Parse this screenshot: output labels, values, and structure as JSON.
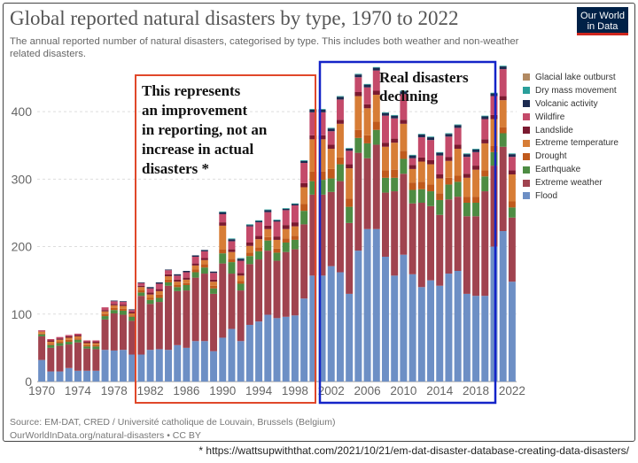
{
  "header": {
    "title": "Global reported natural disasters by type, 1970 to 2022",
    "subtitle": "The annual reported number of natural disasters, categorised by type. This includes both weather and non-weather related disasters.",
    "logo": "Our World in Data"
  },
  "annotations": {
    "left_box_text": "This represents\nan improvement\nin reporting, not an\nincrease in actual\ndisasters *",
    "right_box_text": "Real disasters\ndeclining",
    "left_box_color": "#e0482a",
    "right_box_color": "#1424c8"
  },
  "footer": {
    "source_line1": "Source: EM-DAT, CRED / Université catholique de Louvain, Brussels (Belgium)",
    "source_line2": "OurWorldInData.org/natural-disasters • CC BY",
    "footnote": "*  https://wattsupwiththat.com/2021/10/21/em-dat-disaster-database-creating-data-disasters/"
  },
  "chart_data": {
    "type": "bar",
    "stacked": true,
    "title": "Global reported natural disasters by type, 1970 to 2022",
    "ylim": [
      0,
      450
    ],
    "yticks": [
      0,
      100,
      200,
      300,
      400
    ],
    "xticks": [
      1970,
      1974,
      1978,
      1982,
      1986,
      1990,
      1994,
      1998,
      2002,
      2006,
      2010,
      2014,
      2018,
      2022
    ],
    "grid": true,
    "legend_position": "right",
    "categories": [
      1970,
      1971,
      1972,
      1973,
      1974,
      1975,
      1976,
      1977,
      1978,
      1979,
      1980,
      1981,
      1982,
      1983,
      1984,
      1985,
      1986,
      1987,
      1988,
      1989,
      1990,
      1991,
      1992,
      1993,
      1994,
      1995,
      1996,
      1997,
      1998,
      1999,
      2000,
      2001,
      2002,
      2003,
      2004,
      2005,
      2006,
      2007,
      2008,
      2009,
      2010,
      2011,
      2012,
      2013,
      2014,
      2015,
      2016,
      2017,
      2018,
      2019,
      2020,
      2021,
      2022
    ],
    "series": [
      {
        "name": "Flood",
        "color": "#6d8fc5",
        "values": [
          32,
          15,
          15,
          20,
          16,
          16,
          16,
          47,
          46,
          47,
          40,
          40,
          47,
          48,
          47,
          54,
          50,
          60,
          60,
          45,
          65,
          78,
          60,
          84,
          89,
          99,
          94,
          96,
          98,
          123,
          157,
          157,
          171,
          162,
          130,
          194,
          226,
          226,
          185,
          157,
          188,
          159,
          140,
          150,
          142,
          160,
          164,
          130,
          127,
          127,
          200,
          223,
          148
        ]
      },
      {
        "name": "Extreme weather",
        "color": "#a0434f",
        "values": [
          35,
          35,
          38,
          35,
          42,
          33,
          32,
          45,
          55,
          52,
          50,
          87,
          68,
          70,
          95,
          80,
          85,
          94,
          100,
          85,
          110,
          82,
          75,
          90,
          92,
          95,
          85,
          96,
          98,
          110,
          120,
          120,
          110,
          135,
          105,
          145,
          105,
          125,
          95,
          125,
          120,
          105,
          125,
          110,
          105,
          110,
          110,
          115,
          118,
          155,
          120,
          125,
          95
        ]
      },
      {
        "name": "Earthquake",
        "color": "#4e8c43",
        "values": [
          3,
          4,
          4,
          4,
          4,
          3,
          4,
          5,
          5,
          6,
          6,
          5,
          6,
          6,
          5,
          6,
          8,
          8,
          9,
          8,
          15,
          17,
          10,
          12,
          12,
          15,
          12,
          14,
          14,
          20,
          20,
          22,
          20,
          25,
          24,
          22,
          22,
          22,
          22,
          20,
          22,
          20,
          20,
          22,
          22,
          22,
          22,
          20,
          20,
          22,
          20,
          20,
          15
        ]
      },
      {
        "name": "Drought",
        "color": "#c05a1c",
        "values": [
          1,
          2,
          2,
          3,
          2,
          2,
          2,
          3,
          3,
          3,
          2,
          4,
          3,
          5,
          4,
          3,
          3,
          4,
          5,
          4,
          6,
          5,
          4,
          5,
          6,
          5,
          6,
          6,
          6,
          10,
          14,
          12,
          14,
          10,
          12,
          12,
          12,
          12,
          11,
          12,
          12,
          11,
          11,
          10,
          10,
          10,
          9,
          9,
          9,
          9,
          9,
          9,
          9
        ]
      },
      {
        "name": "Extreme temperature",
        "color": "#d77d36",
        "values": [
          3,
          3,
          3,
          3,
          3,
          3,
          3,
          4,
          4,
          4,
          3,
          4,
          5,
          5,
          5,
          5,
          5,
          6,
          6,
          6,
          35,
          10,
          8,
          10,
          12,
          12,
          13,
          14,
          14,
          25,
          48,
          48,
          30,
          50,
          45,
          50,
          40,
          40,
          35,
          40,
          40,
          20,
          30,
          30,
          22,
          25,
          40,
          28,
          40,
          40,
          40,
          40,
          40
        ]
      },
      {
        "name": "Landslide",
        "color": "#7b1a30",
        "values": [
          0,
          2,
          2,
          2,
          2,
          2,
          2,
          2,
          2,
          2,
          2,
          2,
          3,
          3,
          3,
          3,
          3,
          3,
          3,
          3,
          5,
          4,
          4,
          5,
          5,
          5,
          5,
          6,
          6,
          6,
          6,
          6,
          6,
          6,
          6,
          6,
          6,
          6,
          6,
          6,
          6,
          6,
          6,
          6,
          6,
          6,
          6,
          6,
          6,
          6,
          6,
          6,
          6
        ]
      },
      {
        "name": "Wildfire",
        "color": "#c44a6a",
        "values": [
          2,
          2,
          2,
          2,
          2,
          2,
          2,
          4,
          4,
          4,
          3,
          4,
          6,
          8,
          6,
          6,
          8,
          10,
          10,
          10,
          12,
          12,
          18,
          24,
          20,
          20,
          22,
          22,
          25,
          30,
          34,
          34,
          20,
          30,
          20,
          22,
          25,
          30,
          40,
          30,
          38,
          10,
          30,
          30,
          28,
          30,
          25,
          25,
          20,
          30,
          28,
          40,
          20
        ]
      },
      {
        "name": "Volcanic activity",
        "color": "#1c2b50",
        "values": [
          0,
          0,
          0,
          0,
          0,
          0,
          0,
          0,
          1,
          1,
          1,
          1,
          2,
          2,
          1,
          2,
          2,
          2,
          2,
          2,
          3,
          3,
          3,
          2,
          2,
          3,
          2,
          2,
          2,
          3,
          4,
          4,
          4,
          4,
          3,
          4,
          4,
          4,
          4,
          4,
          4,
          4,
          4,
          4,
          4,
          4,
          4,
          4,
          4,
          4,
          4,
          4,
          4
        ]
      },
      {
        "name": "Dry mass movement",
        "color": "#2a9f9a",
        "values": [
          0,
          0,
          0,
          0,
          0,
          0,
          0,
          0,
          0,
          0,
          0,
          0,
          0,
          0,
          0,
          0,
          0,
          0,
          0,
          0,
          1,
          1,
          1,
          1,
          1,
          1,
          1,
          1,
          1,
          1,
          1,
          1,
          1,
          1,
          1,
          1,
          1,
          1,
          1,
          1,
          1,
          1,
          1,
          1,
          1,
          1,
          1,
          1,
          1,
          1,
          1,
          1,
          1
        ]
      },
      {
        "name": "Glacial lake outburst",
        "color": "#b28a62",
        "values": [
          0,
          0,
          0,
          0,
          0,
          0,
          0,
          0,
          0,
          0,
          0,
          0,
          0,
          0,
          0,
          0,
          0,
          0,
          0,
          0,
          0,
          0,
          0,
          0,
          0,
          0,
          0,
          0,
          0,
          0,
          0,
          0,
          0,
          0,
          0,
          0,
          0,
          0,
          0,
          0,
          0,
          0,
          0,
          0,
          0,
          0,
          0,
          0,
          0,
          0,
          0,
          0,
          0
        ]
      }
    ]
  }
}
